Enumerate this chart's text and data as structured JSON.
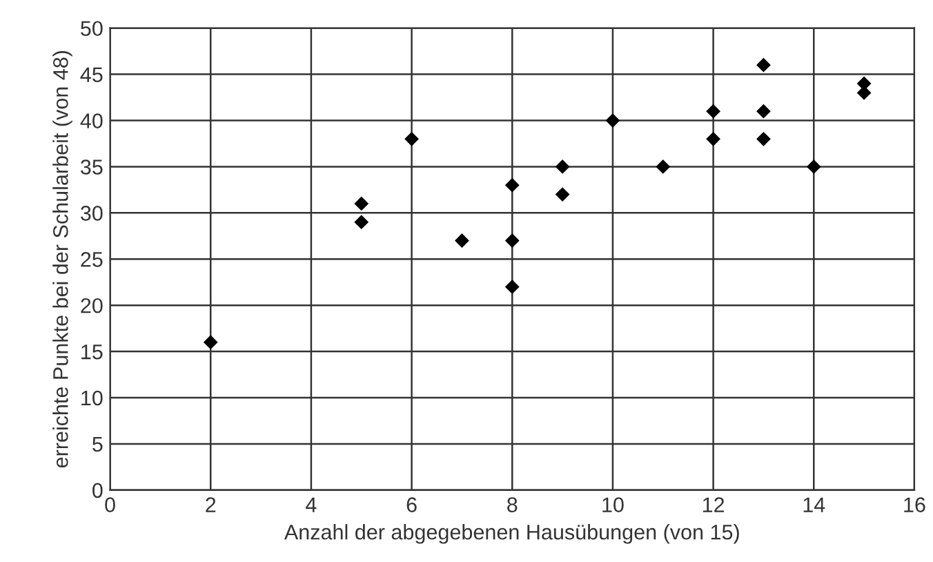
{
  "chart_data": {
    "type": "scatter",
    "xlabel": "Anzahl der abgegebenen Hausübungen (von 15)",
    "ylabel": "erreichte Punkte bei der Schularbeit (von 48)",
    "x": [
      2,
      5,
      5,
      6,
      7,
      8,
      8,
      8,
      9,
      9,
      10,
      11,
      12,
      12,
      13,
      13,
      13,
      14,
      15,
      15
    ],
    "values": [
      16,
      31,
      29,
      38,
      27,
      33,
      27,
      22,
      35,
      32,
      40,
      35,
      41,
      38,
      46,
      41,
      38,
      35,
      44,
      43
    ],
    "color": "#000000",
    "marker": "diamond",
    "xlim": [
      0,
      16
    ],
    "xticks": [
      0,
      2,
      4,
      6,
      8,
      10,
      12,
      14,
      16
    ],
    "ylim": [
      0,
      50
    ],
    "yticks": [
      0,
      5,
      10,
      15,
      20,
      25,
      30,
      35,
      40,
      45,
      50
    ],
    "grid": true
  }
}
